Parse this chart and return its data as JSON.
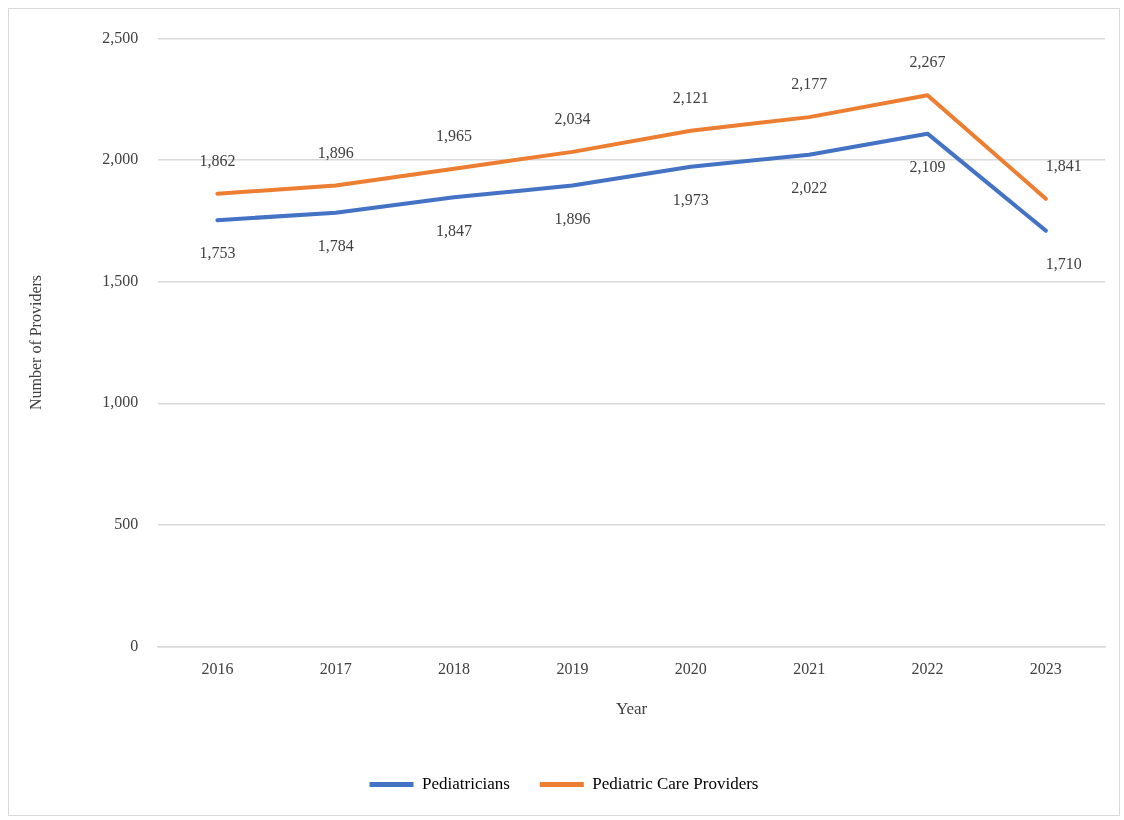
{
  "chart_data": {
    "type": "line",
    "xlabel": "Year",
    "ylabel": "Number of Providers",
    "categories": [
      "2016",
      "2017",
      "2018",
      "2019",
      "2020",
      "2021",
      "2022",
      "2023"
    ],
    "series": [
      {
        "name": "Pediatricians",
        "color": "#4472c4",
        "values": [
          1753,
          1784,
          1847,
          1896,
          1973,
          2022,
          2109,
          1710
        ],
        "value_labels": [
          "1,753",
          "1,784",
          "1,847",
          "1,896",
          "1,973",
          "2,022",
          "2,109",
          "1,710"
        ]
      },
      {
        "name": "Pediatric Care Providers",
        "color": "#ed7d31",
        "values": [
          1862,
          1896,
          1965,
          2034,
          2121,
          2177,
          2267,
          1841
        ],
        "value_labels": [
          "1,862",
          "1,896",
          "1,965",
          "2,034",
          "2,121",
          "2,177",
          "2,267",
          "1,841"
        ]
      }
    ],
    "ylim": [
      0,
      2500
    ],
    "yticks": [
      0,
      500,
      {
        "value": 1000,
        "label": "1,000"
      },
      {
        "value": 1500,
        "label": "1,500"
      },
      {
        "value": 2000,
        "label": "2,000"
      },
      {
        "value": 2500,
        "label": "2,500"
      }
    ],
    "grid": "y",
    "legend": "bottom",
    "marker": "none",
    "line_style": "solid"
  }
}
